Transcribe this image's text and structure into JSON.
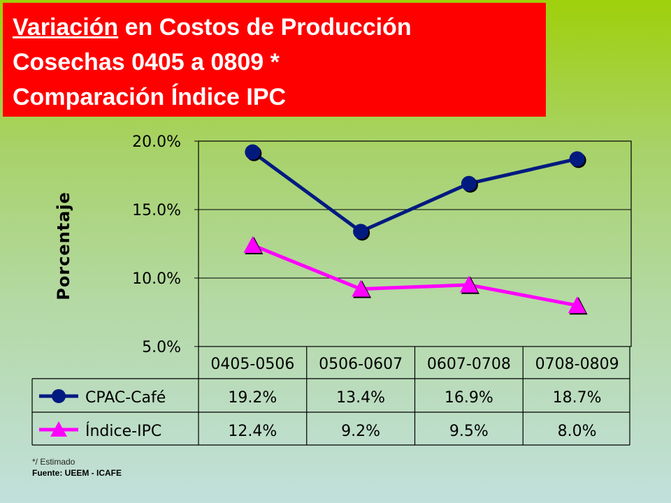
{
  "title": {
    "line1_underlined": "Variación",
    "line1_rest": " en Costos de Producción",
    "line2": "Cosechas 0405 a 0809 *",
    "line3": "Comparación Índice IPC"
  },
  "footnote": "*/ Estimado",
  "source": "Fuente: UEEM - ICAFE",
  "colors": {
    "title_bg": "#ff0000",
    "cpac": "#001a80",
    "ipc": "#ff00ff"
  },
  "chart_data": {
    "type": "line",
    "categories": [
      "0405-0506",
      "0506-0607",
      "0607-0708",
      "0708-0809"
    ],
    "series": [
      {
        "name": "CPAC-Café",
        "values": [
          19.2,
          13.4,
          16.9,
          18.7
        ],
        "labels": [
          "19.2%",
          "13.4%",
          "16.9%",
          "18.7%"
        ],
        "marker": "circle",
        "color": "#001a80"
      },
      {
        "name": "Índice-IPC",
        "values": [
          12.4,
          9.2,
          9.5,
          8.0
        ],
        "labels": [
          "12.4%",
          "9.2%",
          "9.5%",
          "8.0%"
        ],
        "marker": "triangle",
        "color": "#ff00ff"
      }
    ],
    "ylabel": "Porcentaje",
    "ylim": [
      5,
      20
    ],
    "yticks": [
      "20.0%",
      "15.0%",
      "10.0%",
      "5.0%"
    ],
    "grid": true,
    "legend": "data-table"
  }
}
